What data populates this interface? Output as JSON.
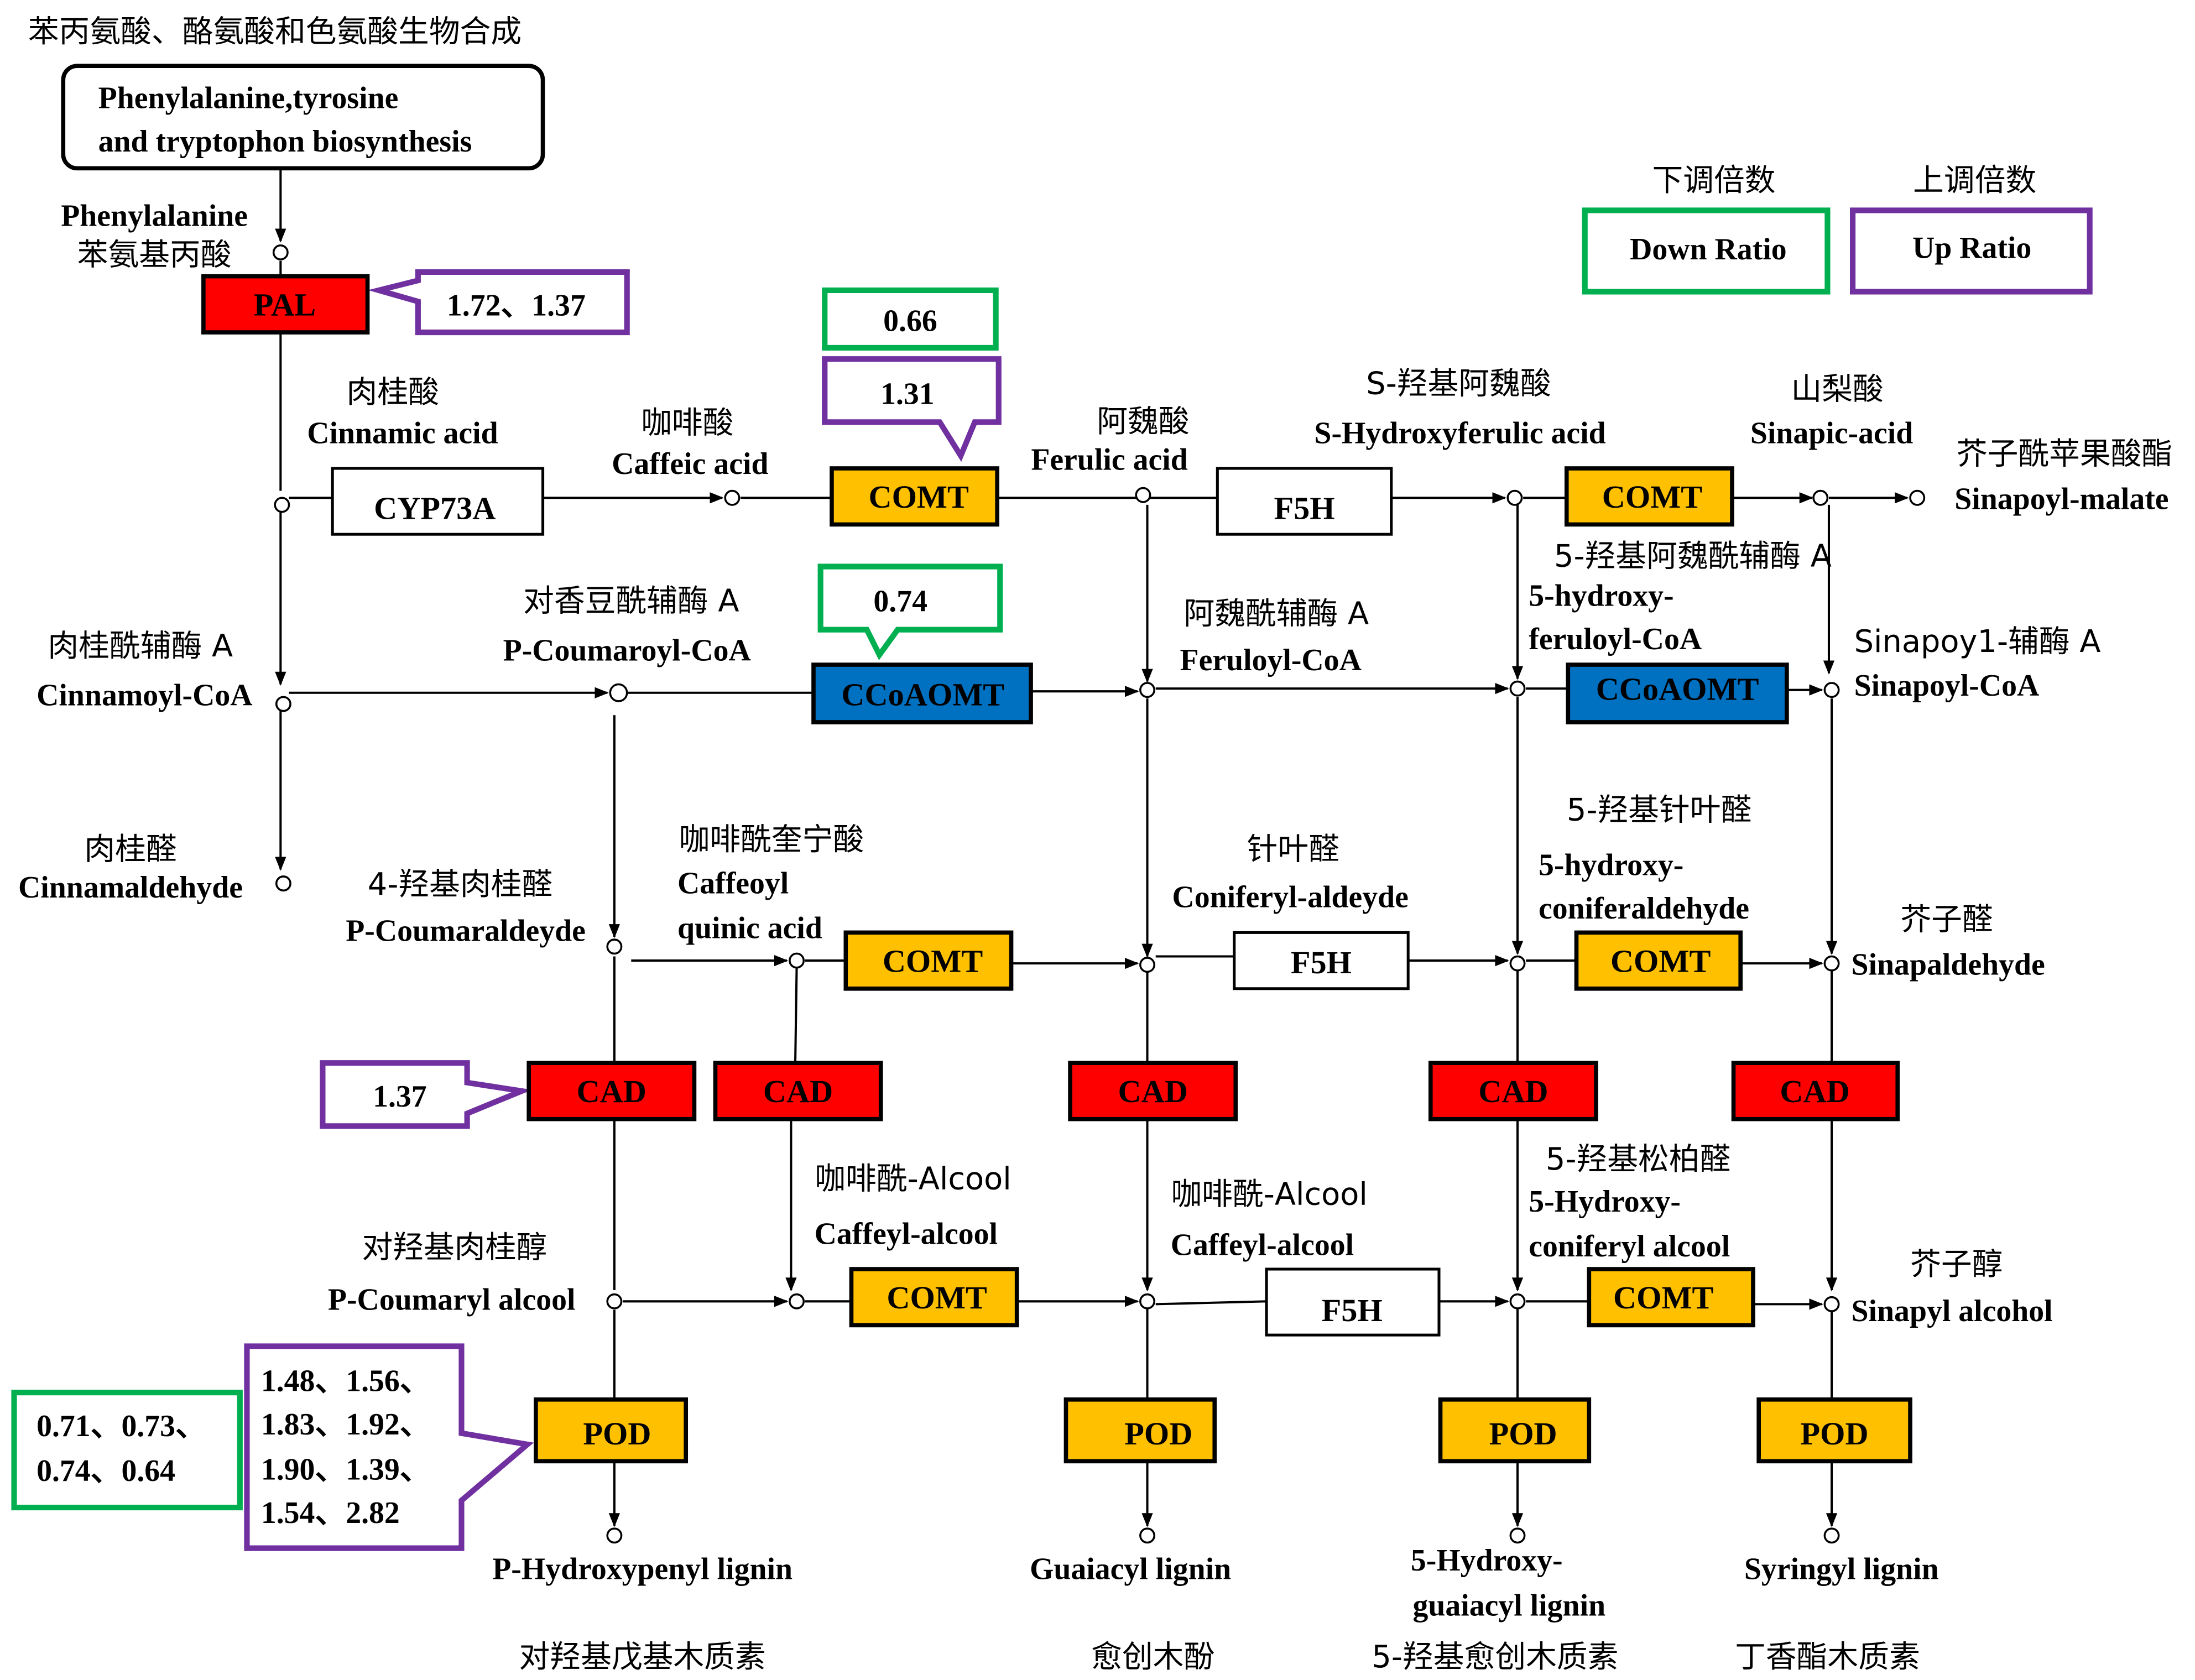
{
  "title_cn": "苯丙氨酸、酪氨酸和色氨酸生物合成",
  "pathway_box": {
    "line1": "Phenylalanine,tyrosine",
    "line2": "and tryptophon biosynthesis"
  },
  "legend": {
    "down": {
      "cn": "下调倍数",
      "label": "Down  Ratio",
      "color": "#00b050"
    },
    "up": {
      "cn": "上调倍数",
      "label": "Up Ratio",
      "color": "#7030a0"
    }
  },
  "colors": {
    "red": "#ff0000",
    "orange": "#ffc000",
    "blue": "#0070c0"
  },
  "enzymes": {
    "pal": "PAL",
    "cyp73a": "CYP73A",
    "comt": "COMT",
    "f5h": "F5H",
    "ccoaomt": "CCoAOMT",
    "cad": "CAD",
    "pod": "POD"
  },
  "ratios": {
    "pal_up": "1.72、1.37",
    "comt_down": "0.66",
    "comt_up": "1.31",
    "ccoaomt_down": "0.74",
    "cad_up": "1.37",
    "pod_down": [
      "0.71、0.73、",
      "0.74、0.64"
    ],
    "pod_up": [
      "1.48、1.56、",
      "1.83、1.92、",
      "1.90、1.39、",
      "1.54、2.82"
    ]
  },
  "compounds": {
    "phenylalanine": {
      "en": "Phenylalanine",
      "cn": "苯氨基丙酸"
    },
    "cinnamic": {
      "cn": "肉桂酸",
      "en": "Cinnamic acid"
    },
    "caffeic": {
      "cn": "咖啡酸",
      "en": "Caffeic acid"
    },
    "ferulic": {
      "cn": "阿魏酸",
      "en": "Ferulic acid"
    },
    "s_hydroxyferulic": {
      "cn": "S-羟基阿魏酸",
      "en": "S-Hydroxyferulic acid"
    },
    "sinapic": {
      "cn": "山梨酸",
      "en": "Sinapic-acid"
    },
    "sinapoyl_malate": {
      "cn": "芥子酰苹果酸酯",
      "en": "Sinapoyl-malate"
    },
    "p_coumaroyl_coa": {
      "cn": "对香豆酰辅酶 A",
      "en": "P-Coumaroyl-CoA"
    },
    "cinnamoyl_coa": {
      "cn": "肉桂酰辅酶 A",
      "en": "Cinnamoyl-CoA"
    },
    "feruloyl_coa": {
      "cn": "阿魏酰辅酶 A",
      "en": "Feruloyl-CoA"
    },
    "hydroxyferuloyl_coa": {
      "cn": "5-羟基阿魏酰辅酶 A",
      "en1": "5-hydroxy-",
      "en2": "feruloyl-CoA"
    },
    "sinapoyl_coa": {
      "cn": "Sinapoy1-辅酶 A",
      "en": "Sinapoyl-CoA"
    },
    "cinnamaldehyde": {
      "cn": "肉桂醛",
      "en": "Cinnamaldehyde"
    },
    "p_coumaraldehyde": {
      "cn": "4-羟基肉桂醛",
      "en": "P-Coumaraldeyde"
    },
    "caffeoyl_quinic": {
      "cn": "咖啡酰奎宁酸",
      "en1": "Caffeoyl",
      "en2": "quinic acid"
    },
    "coniferyl_aldehyde": {
      "cn": "针叶醛",
      "en": "Coniferyl-aldeyde"
    },
    "hydroxyconiferaldehyde": {
      "cn": "5-羟基针叶醛",
      "en1": "5-hydroxy-",
      "en2": "coniferaldehyde"
    },
    "sinapaldehyde": {
      "cn": "芥子醛",
      "en": "Sinapaldehyde"
    },
    "caffeyl_alcool_1": {
      "cn": "咖啡酰-Alcool",
      "en": "Caffeyl-alcool"
    },
    "caffeyl_alcool_2": {
      "cn": "咖啡酰-Alcool",
      "en": "Caffeyl-alcool"
    },
    "hydroxyconiferyl_alcool": {
      "cn": "5-羟基松柏醛",
      "en1": "5-Hydroxy-",
      "en2": "coniferyl alcool"
    },
    "p_coumaryl_alcool": {
      "cn": "对羟基肉桂醇",
      "en": "P-Coumaryl alcool"
    },
    "sinapyl_alcohol": {
      "cn": "芥子醇",
      "en": "Sinapyl alcohol"
    }
  },
  "lignins": {
    "h": {
      "en": "P-Hydroxypenyl lignin",
      "cn": "对羟基戊基木质素"
    },
    "g": {
      "en": "Guaiacyl lignin",
      "cn": "愈创木酚"
    },
    "5h": {
      "en1": "5-Hydroxy-",
      "en2": "guaiacyl lignin",
      "cn": "5-羟基愈创木质素"
    },
    "s": {
      "en": "Syringyl lignin",
      "cn": "丁香酯木质素"
    }
  }
}
